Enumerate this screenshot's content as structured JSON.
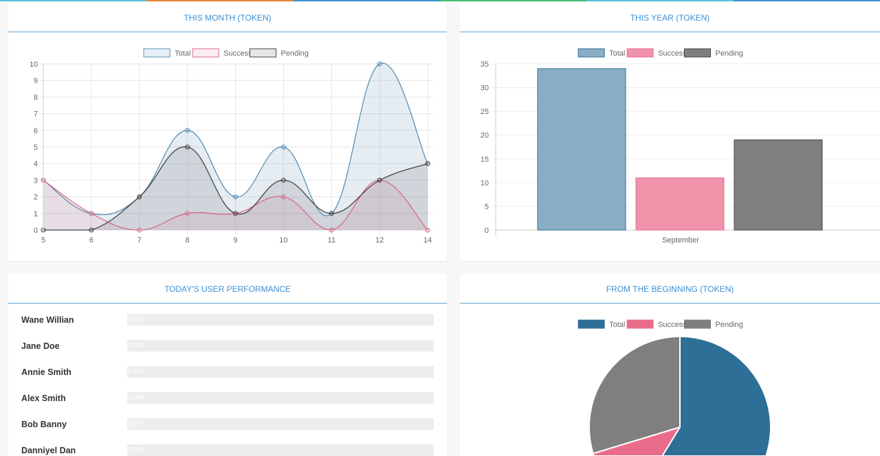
{
  "strip_colors": [
    "#5bc0de",
    "#e8852e",
    "#3a8fd6",
    "#3fbf6f",
    "#5bc0de",
    "#3a8fd6"
  ],
  "colors": {
    "total": "#2e6f97",
    "success": "#e96d8b",
    "pending": "#7f7f7f",
    "title": "#3a8fd6"
  },
  "cards": {
    "month": {
      "title": "THIS MONTH (TOKEN)"
    },
    "year": {
      "title": "THIS YEAR (TOKEN)"
    },
    "performance": {
      "title": "TODAY'S USER PERFORMANCE"
    },
    "beginning": {
      "title": "FROM THE BEGINNING (TOKEN)"
    }
  },
  "performance": [
    {
      "name": "Wane Willian",
      "percent": 0,
      "label": "0.0%"
    },
    {
      "name": "Jane Doe",
      "percent": 0,
      "label": "0.0%"
    },
    {
      "name": "Annie Smith",
      "percent": 0,
      "label": "0.0%"
    },
    {
      "name": "Alex Smith",
      "percent": 0,
      "label": "0.0%"
    },
    {
      "name": "Bob Banny",
      "percent": 0,
      "label": "0.0%"
    },
    {
      "name": "Danniyel Dan",
      "percent": 0,
      "label": "0.0%"
    }
  ],
  "chart_data": [
    {
      "type": "line",
      "categories": [
        "5",
        "6",
        "7",
        "8",
        "9",
        "10",
        "11",
        "12",
        "14"
      ],
      "series": [
        {
          "name": "Total",
          "values": [
            3,
            1,
            2,
            6,
            2,
            5,
            1,
            10,
            4
          ]
        },
        {
          "name": "Success",
          "values": [
            3,
            1,
            0,
            1,
            1,
            2,
            0,
            3,
            0
          ]
        },
        {
          "name": "Pending",
          "values": [
            0,
            0,
            2,
            5,
            1,
            3,
            1,
            3,
            4
          ]
        }
      ],
      "ylim": [
        0,
        10
      ],
      "yticks": [
        "0",
        "1",
        "2",
        "3",
        "4",
        "5",
        "6",
        "7",
        "8",
        "9",
        "10"
      ],
      "grid": true,
      "legend": "top",
      "filled": true
    },
    {
      "type": "bar",
      "categories": [
        "September"
      ],
      "series": [
        {
          "name": "Total",
          "values": [
            34
          ]
        },
        {
          "name": "Success",
          "values": [
            11
          ]
        },
        {
          "name": "Pending",
          "values": [
            19
          ]
        }
      ],
      "ylim": [
        0,
        35
      ],
      "yticks": [
        "0",
        "5",
        "10",
        "15",
        "20",
        "25",
        "30",
        "35"
      ],
      "grid": true,
      "legend": "top"
    },
    {
      "type": "pie",
      "labels": [
        "Total",
        "Success",
        "Pending"
      ],
      "values": [
        34,
        11,
        19
      ],
      "legend": "top"
    }
  ]
}
